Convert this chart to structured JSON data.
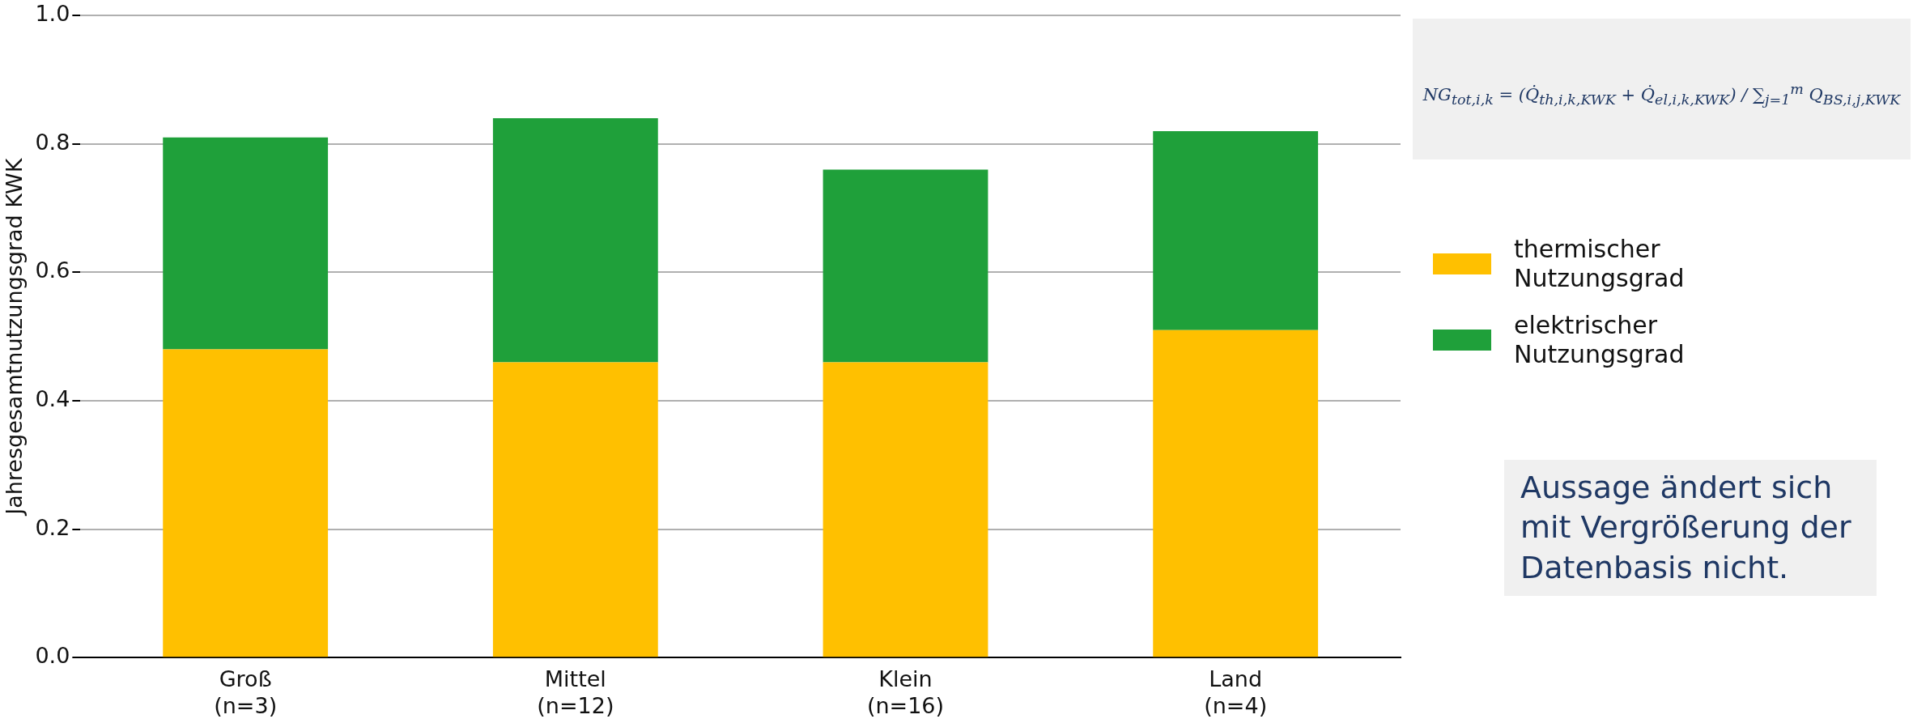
{
  "chart_data": {
    "type": "bar",
    "stacked": true,
    "ylabel": "Jahresgesamtnutzungsgrad KWK",
    "categories": [
      "Groß (n=3)",
      "Mittel (n=12)",
      "Klein (n=16)",
      "Land (n=4)"
    ],
    "series": [
      {
        "name": "thermischer Nutzungsgrad",
        "color": "#ffc000",
        "values": [
          0.48,
          0.46,
          0.46,
          0.51
        ]
      },
      {
        "name": "elektrischer Nutzungsgrad",
        "color": "#1fa03a",
        "values": [
          0.33,
          0.38,
          0.3,
          0.31
        ]
      }
    ],
    "ylim": [
      0,
      1
    ],
    "yticks": [
      {
        "value": 0,
        "label": "0.0"
      },
      {
        "value": 0.2,
        "label": "0.2"
      },
      {
        "value": 0.4,
        "label": "0.4"
      },
      {
        "value": 0.6,
        "label": "0.6"
      },
      {
        "value": 0.8,
        "label": "0.8"
      },
      {
        "value": 1,
        "label": "1.0"
      }
    ],
    "grid": "y",
    "legend": "right",
    "annotations": [
      "NG$_{tot,i,k}$ = (Q̇$_{th,i,k,KWK}$ + Q̇$_{el,i,k,KWK}$) / ∑$_{j=1}$$^{m}$ Q$_{BS,i,j,KWK}$",
      "Aussage ändert sich mit Vergrößerung der Datenbasis nicht."
    ]
  }
}
